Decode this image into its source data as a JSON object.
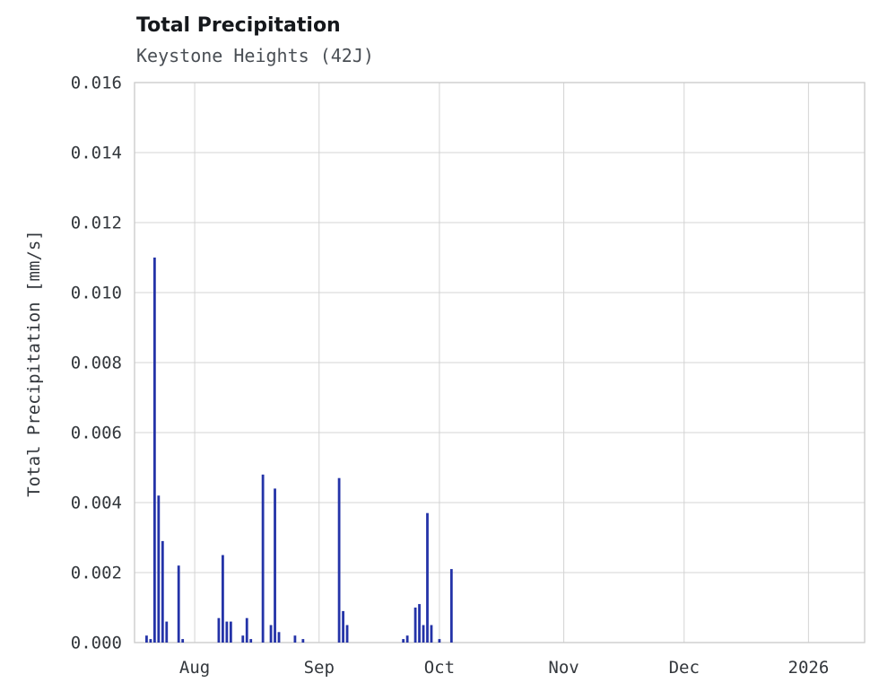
{
  "chart": {
    "title": "Total Precipitation",
    "subtitle": "Keystone Heights (42J)",
    "y_label": "Total Precipitation [mm/s]"
  },
  "chart_data": {
    "type": "bar",
    "title": "Total Precipitation",
    "subtitle": "Keystone Heights (42J)",
    "xlabel": "",
    "ylabel": "Total Precipitation [mm/s]",
    "ylim": [
      0,
      0.016
    ],
    "grid": true,
    "bar_color": "#2433a8",
    "grid_color": "#d4d4d4",
    "border_color": "#c9c9c9",
    "y_ticks": [
      {
        "label": "0.000",
        "value": 0.0
      },
      {
        "label": "0.002",
        "value": 0.002
      },
      {
        "label": "0.004",
        "value": 0.004
      },
      {
        "label": "0.006",
        "value": 0.006
      },
      {
        "label": "0.008",
        "value": 0.008
      },
      {
        "label": "0.010",
        "value": 0.01
      },
      {
        "label": "0.012",
        "value": 0.012
      },
      {
        "label": "0.014",
        "value": 0.014
      },
      {
        "label": "0.016",
        "value": 0.016
      }
    ],
    "x_axis": {
      "start_label": "Jul 17",
      "total_days": 182,
      "ticks": [
        {
          "label": "Aug",
          "day": 15
        },
        {
          "label": "Sep",
          "day": 46
        },
        {
          "label": "Oct",
          "day": 76
        },
        {
          "label": "Nov",
          "day": 107
        },
        {
          "label": "Dec",
          "day": 137
        },
        {
          "label": "2026",
          "day": 168
        }
      ]
    },
    "points": [
      {
        "date": "Jul 20",
        "day": 3,
        "value": 0.0002
      },
      {
        "date": "Jul 21",
        "day": 4,
        "value": 0.0001
      },
      {
        "date": "Jul 22",
        "day": 5,
        "value": 0.011
      },
      {
        "date": "Jul 23",
        "day": 6,
        "value": 0.0042
      },
      {
        "date": "Jul 24",
        "day": 7,
        "value": 0.0029
      },
      {
        "date": "Jul 25",
        "day": 8,
        "value": 0.0006
      },
      {
        "date": "Jul 28",
        "day": 11,
        "value": 0.0022
      },
      {
        "date": "Jul 29",
        "day": 12,
        "value": 0.0001
      },
      {
        "date": "Aug 7",
        "day": 21,
        "value": 0.0007
      },
      {
        "date": "Aug 8",
        "day": 22,
        "value": 0.0025
      },
      {
        "date": "Aug 9",
        "day": 23,
        "value": 0.0006
      },
      {
        "date": "Aug 10",
        "day": 24,
        "value": 0.0006
      },
      {
        "date": "Aug 13",
        "day": 27,
        "value": 0.0002
      },
      {
        "date": "Aug 14",
        "day": 28,
        "value": 0.0007
      },
      {
        "date": "Aug 15",
        "day": 29,
        "value": 0.0001
      },
      {
        "date": "Aug 18",
        "day": 32,
        "value": 0.0048
      },
      {
        "date": "Aug 20",
        "day": 34,
        "value": 0.0005
      },
      {
        "date": "Aug 21",
        "day": 35,
        "value": 0.0044
      },
      {
        "date": "Aug 22",
        "day": 36,
        "value": 0.0003
      },
      {
        "date": "Aug 26",
        "day": 40,
        "value": 0.0002
      },
      {
        "date": "Aug 28",
        "day": 42,
        "value": 0.0001
      },
      {
        "date": "Sep 6",
        "day": 51,
        "value": 0.0047
      },
      {
        "date": "Sep 7",
        "day": 52,
        "value": 0.0009
      },
      {
        "date": "Sep 8",
        "day": 53,
        "value": 0.0005
      },
      {
        "date": "Sep 22",
        "day": 67,
        "value": 0.0001
      },
      {
        "date": "Sep 23",
        "day": 68,
        "value": 0.0002
      },
      {
        "date": "Sep 25",
        "day": 70,
        "value": 0.001
      },
      {
        "date": "Sep 26",
        "day": 71,
        "value": 0.0011
      },
      {
        "date": "Sep 27",
        "day": 72,
        "value": 0.0005
      },
      {
        "date": "Sep 28",
        "day": 73,
        "value": 0.0037
      },
      {
        "date": "Sep 29",
        "day": 74,
        "value": 0.0005
      },
      {
        "date": "Oct 1",
        "day": 76,
        "value": 0.0001
      },
      {
        "date": "Oct 4",
        "day": 79,
        "value": 0.0021
      }
    ]
  }
}
